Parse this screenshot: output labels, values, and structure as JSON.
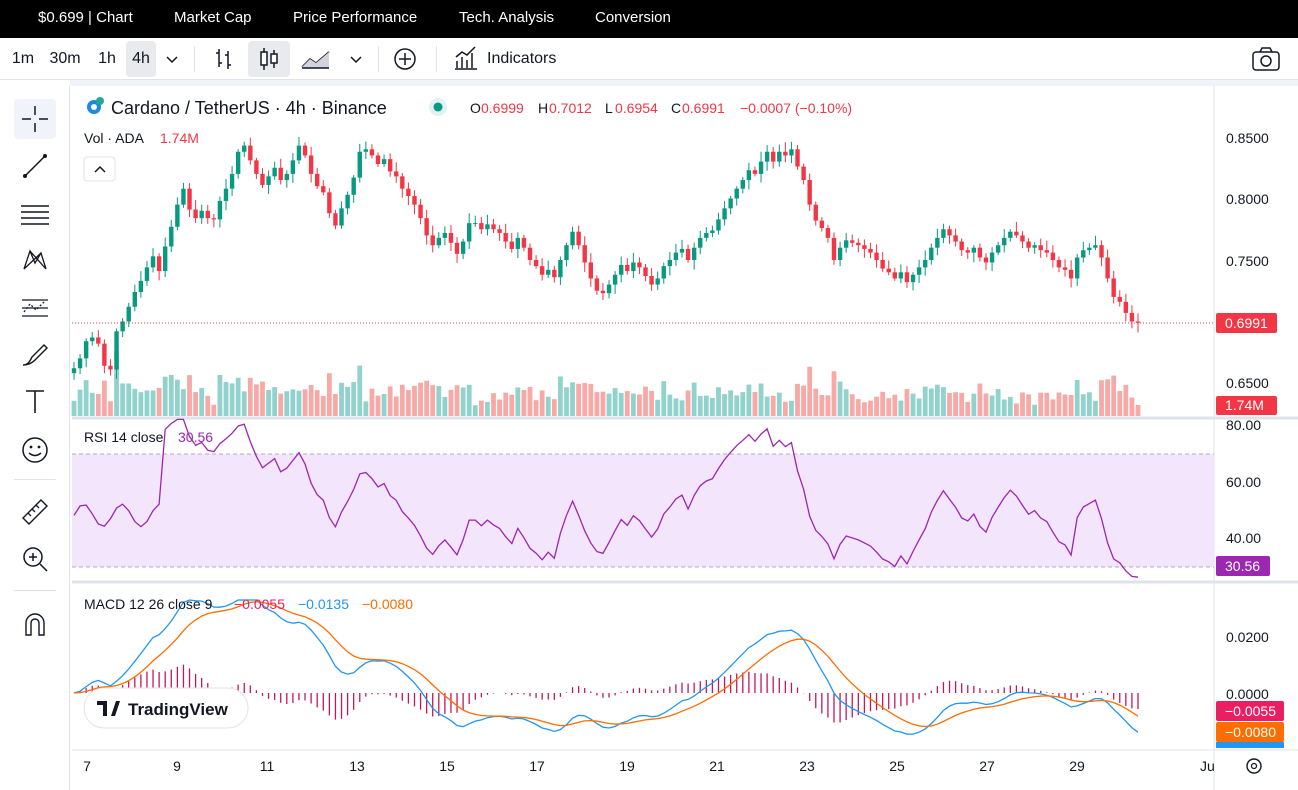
{
  "topnav": {
    "items": [
      "$0.699 | Chart",
      "Market Cap",
      "Price Performance",
      "Tech. Analysis",
      "Conversion"
    ]
  },
  "toolbar": {
    "intervals": [
      "1m",
      "30m",
      "1h",
      "4h"
    ],
    "active_interval": "4h",
    "indicators_label": "Indicators"
  },
  "legend": {
    "symbol": "Cardano / TetherUS · 4h · Binance",
    "o_label": "O",
    "o_value": "0.6999",
    "h_label": "H",
    "h_value": "0.7012",
    "l_label": "L",
    "l_value": "0.6954",
    "c_label": "C",
    "c_value": "0.6991",
    "change": "−0.0007 (−0.10%)",
    "vol_label": "Vol · ADA",
    "vol_value": "1.74M"
  },
  "rsi_legend": {
    "label": "RSI 14 close",
    "value": "30.56"
  },
  "macd_legend": {
    "label": "MACD 12 26 close 9",
    "hist": "−0.0055",
    "macd": "−0.0135",
    "signal": "−0.0080"
  },
  "watermark": "TradingView",
  "colors": {
    "up": "#089981",
    "down": "#f23645",
    "vol_up": "#92d2cc",
    "vol_down": "#f7a9a7",
    "rsi": "#9c27b0",
    "rsi_band": "#f3e5fc",
    "macd": "#2196f3",
    "signal": "#ff6d00",
    "hist": "#c2185b"
  },
  "chart_data": [
    {
      "type": "candlestick",
      "title": "Cardano / TetherUS · 4h · Binance",
      "x_tick_labels": [
        "7",
        "9",
        "11",
        "13",
        "15",
        "17",
        "19",
        "21",
        "23",
        "25",
        "27",
        "29",
        "Ju"
      ],
      "y_ticks": [
        0.85,
        0.8,
        0.75,
        0.7,
        0.65
      ],
      "ylim": [
        0.625,
        0.865
      ],
      "last_price": "0.6991",
      "volume_last": "1.74M",
      "close": [
        0.662,
        0.67,
        0.684,
        0.687,
        0.682,
        0.664,
        0.661,
        0.692,
        0.7,
        0.712,
        0.724,
        0.733,
        0.744,
        0.753,
        0.741,
        0.761,
        0.777,
        0.795,
        0.808,
        0.791,
        0.784,
        0.79,
        0.784,
        0.783,
        0.798,
        0.808,
        0.82,
        0.838,
        0.843,
        0.831,
        0.82,
        0.811,
        0.818,
        0.825,
        0.815,
        0.82,
        0.831,
        0.843,
        0.835,
        0.82,
        0.81,
        0.805,
        0.788,
        0.778,
        0.792,
        0.803,
        0.817,
        0.838,
        0.84,
        0.835,
        0.828,
        0.832,
        0.822,
        0.818,
        0.808,
        0.802,
        0.795,
        0.784,
        0.77,
        0.762,
        0.768,
        0.772,
        0.764,
        0.755,
        0.765,
        0.78,
        0.78,
        0.775,
        0.779,
        0.775,
        0.772,
        0.765,
        0.759,
        0.768,
        0.76,
        0.75,
        0.745,
        0.738,
        0.742,
        0.736,
        0.75,
        0.762,
        0.773,
        0.762,
        0.748,
        0.735,
        0.725,
        0.723,
        0.73,
        0.738,
        0.746,
        0.741,
        0.748,
        0.744,
        0.737,
        0.73,
        0.735,
        0.745,
        0.75,
        0.756,
        0.759,
        0.75,
        0.76,
        0.768,
        0.772,
        0.774,
        0.783,
        0.792,
        0.8,
        0.808,
        0.815,
        0.823,
        0.82,
        0.83,
        0.838,
        0.83,
        0.838,
        0.835,
        0.84,
        0.826,
        0.815,
        0.795,
        0.782,
        0.776,
        0.768,
        0.75,
        0.76,
        0.766,
        0.764,
        0.762,
        0.759,
        0.756,
        0.75,
        0.743,
        0.74,
        0.735,
        0.74,
        0.732,
        0.738,
        0.744,
        0.75,
        0.76,
        0.768,
        0.775,
        0.77,
        0.765,
        0.758,
        0.756,
        0.76,
        0.752,
        0.748,
        0.756,
        0.762,
        0.768,
        0.773,
        0.77,
        0.765,
        0.76,
        0.762,
        0.758,
        0.756,
        0.75,
        0.744,
        0.742,
        0.735,
        0.752,
        0.758,
        0.76,
        0.762,
        0.752,
        0.735,
        0.72,
        0.716,
        0.707,
        0.7,
        0.699
      ],
      "high_max": 0.862,
      "low_min": 0.655
    },
    {
      "type": "line",
      "title": "RSI 14 close",
      "y_ticks": [
        80.0,
        60.0,
        40.0
      ],
      "band": [
        30,
        70
      ],
      "last_value": "30.56"
    },
    {
      "type": "line",
      "title": "MACD 12 26 close 9",
      "y_ticks": [
        0.02,
        0.0
      ],
      "values": {
        "histogram": "−0.0055",
        "macd": "−0.0135",
        "signal": "−0.0080"
      }
    }
  ],
  "axis_labels": {
    "price": [
      "0.8500",
      "0.8000",
      "0.7500",
      "0.6500"
    ],
    "rsi": [
      "80.00",
      "60.00",
      "40.00"
    ],
    "macd": [
      "0.0200",
      "0.0000"
    ]
  },
  "price_tag": "0.6991",
  "vol_tag": "1.74M",
  "rsi_tag": "30.56",
  "macd_tags": [
    "−0.0055",
    "−0.0080"
  ]
}
